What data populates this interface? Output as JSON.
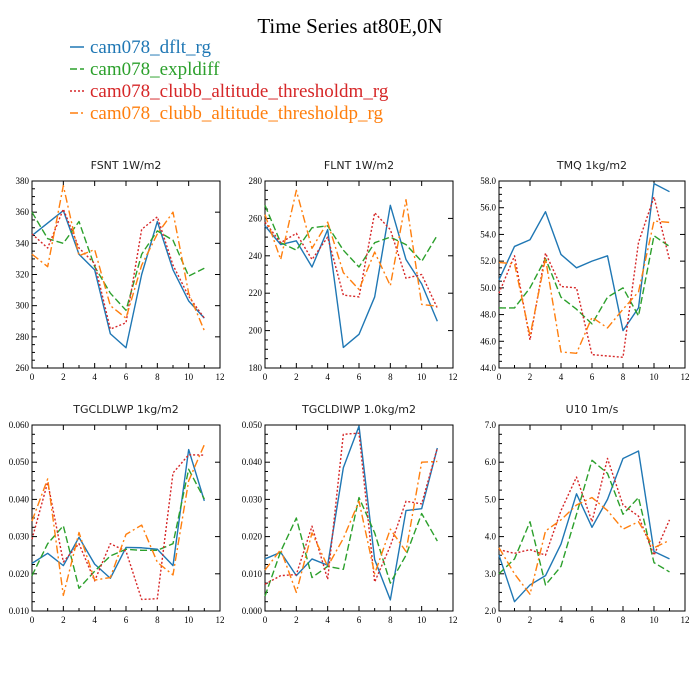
{
  "title": "Time Series at80E,0N",
  "legend": [
    {
      "label": "cam078_dflt_rg",
      "color": "#1f77b4"
    },
    {
      "label": "cam078_expldiff",
      "color": "#2ca02c"
    },
    {
      "label": "cam078_clubb_altitude_thresholdm_rg",
      "color": "#d62728"
    },
    {
      "label": "cam078_clubb_altitude_thresholdp_rg",
      "color": "#ff7f0e"
    }
  ],
  "chart_data": [
    {
      "type": "line",
      "title": "FSNT   1W/m2",
      "x": [
        0,
        1,
        2,
        3,
        4,
        5,
        6,
        7,
        8,
        9,
        10,
        11
      ],
      "xlim": [
        0,
        12
      ],
      "xticks": [
        0,
        2,
        4,
        6,
        8,
        10,
        12
      ],
      "xtick_labels": [
        "0",
        "2",
        "4",
        "6",
        "8",
        "10",
        "12"
      ],
      "ylim": [
        260,
        380
      ],
      "yticks": [
        260,
        280,
        300,
        320,
        340,
        360,
        380
      ],
      "ytick_labels": [
        "260",
        "280",
        "300",
        "320",
        "340",
        "360",
        "380"
      ],
      "series": [
        {
          "name": "cam078_dflt_rg",
          "values": [
            345,
            353,
            361,
            333,
            323,
            282,
            273,
            320,
            354,
            323,
            303,
            292
          ]
        },
        {
          "name": "cam078_expldiff",
          "values": [
            360,
            343,
            340,
            354,
            325,
            308,
            297,
            333,
            348,
            342,
            319,
            324
          ]
        },
        {
          "name": "cam078_clubb_altitude_thresholdm_rg",
          "values": [
            346,
            337,
            362,
            337,
            327,
            285,
            289,
            349,
            357,
            326,
            306,
            292
          ]
        },
        {
          "name": "cam078_clubb_altitude_thresholdp_rg",
          "values": [
            333,
            325,
            377,
            332,
            336,
            300,
            292,
            326,
            346,
            360,
            308,
            284
          ]
        }
      ]
    },
    {
      "type": "line",
      "title": "FLNT   1W/m2",
      "x": [
        0,
        1,
        2,
        3,
        4,
        5,
        6,
        7,
        8,
        9,
        10,
        11
      ],
      "xlim": [
        0,
        12
      ],
      "xticks": [
        0,
        2,
        4,
        6,
        8,
        10,
        12
      ],
      "xtick_labels": [
        "0",
        "2",
        "4",
        "6",
        "8",
        "10",
        "12"
      ],
      "ylim": [
        180,
        280
      ],
      "yticks": [
        180,
        200,
        220,
        240,
        260,
        280
      ],
      "ytick_labels": [
        "180",
        "200",
        "220",
        "240",
        "260",
        "280"
      ],
      "series": [
        {
          "name": "cam078_dflt_rg",
          "values": [
            256,
            246,
            248,
            234,
            254,
            191,
            198,
            218,
            267,
            238,
            225,
            205
          ]
        },
        {
          "name": "cam078_expldiff",
          "values": [
            267,
            247,
            243,
            255,
            256,
            243,
            234,
            247,
            250,
            246,
            237,
            251
          ]
        },
        {
          "name": "cam078_clubb_altitude_thresholdm_rg",
          "values": [
            258,
            247,
            252,
            238,
            250,
            219,
            218,
            263,
            254,
            228,
            230,
            212
          ]
        },
        {
          "name": "cam078_clubb_altitude_thresholdp_rg",
          "values": [
            262,
            238,
            275,
            244,
            258,
            231,
            222,
            242,
            224,
            270,
            214,
            213
          ]
        }
      ]
    },
    {
      "type": "line",
      "title": "TMQ   1kg/m2",
      "x": [
        0,
        1,
        2,
        3,
        4,
        5,
        6,
        7,
        8,
        9,
        10,
        11
      ],
      "xlim": [
        0,
        12
      ],
      "xticks": [
        0,
        2,
        4,
        6,
        8,
        10,
        12
      ],
      "xtick_labels": [
        "0",
        "2",
        "4",
        "6",
        "8",
        "10",
        "12"
      ],
      "ylim": [
        44,
        58
      ],
      "yticks": [
        44,
        46,
        48,
        50,
        52,
        54,
        56,
        58
      ],
      "ytick_labels": [
        "44.0",
        "46.0",
        "48.0",
        "50.0",
        "52.0",
        "54.0",
        "56.0",
        "58.0"
      ],
      "series": [
        {
          "name": "cam078_dflt_rg",
          "values": [
            50.6,
            53.1,
            53.6,
            55.7,
            52.5,
            51.5,
            52.0,
            52.4,
            46.8,
            48.5,
            57.8,
            57.2
          ]
        },
        {
          "name": "cam078_expldiff",
          "values": [
            48.5,
            48.5,
            50.0,
            52.2,
            49.3,
            48.4,
            47.3,
            49.3,
            50.0,
            47.9,
            53.9,
            53.1
          ]
        },
        {
          "name": "cam078_clubb_altitude_thresholdm_rg",
          "values": [
            49.6,
            52.4,
            46.1,
            52.6,
            50.1,
            50.0,
            45.0,
            44.9,
            44.8,
            53.4,
            56.8,
            52.1
          ]
        },
        {
          "name": "cam078_clubb_altitude_thresholdp_rg",
          "values": [
            51.9,
            51.8,
            46.4,
            52.2,
            45.2,
            45.1,
            47.8,
            47.0,
            48.4,
            49.7,
            55.0,
            54.9
          ]
        }
      ]
    },
    {
      "type": "line",
      "title": "TGCLDLWP   1kg/m2",
      "x": [
        0,
        1,
        2,
        3,
        4,
        5,
        6,
        7,
        8,
        9,
        10,
        11
      ],
      "xlim": [
        0,
        12
      ],
      "xticks": [
        0,
        2,
        4,
        6,
        8,
        10,
        12
      ],
      "xtick_labels": [
        "0",
        "2",
        "4",
        "6",
        "8",
        "10",
        "12"
      ],
      "ylim": [
        0.01,
        0.06
      ],
      "yticks": [
        0.01,
        0.02,
        0.03,
        0.04,
        0.05,
        0.06
      ],
      "ytick_labels": [
        "0.010",
        "0.020",
        "0.030",
        "0.040",
        "0.050",
        "0.060"
      ],
      "series": [
        {
          "name": "cam078_dflt_rg",
          "values": [
            0.0228,
            0.0255,
            0.0222,
            0.0298,
            0.0226,
            0.0188,
            0.0271,
            0.027,
            0.0266,
            0.0222,
            0.0534,
            0.0396
          ]
        },
        {
          "name": "cam078_expldiff",
          "values": [
            0.0195,
            0.0281,
            0.0329,
            0.0161,
            0.0207,
            0.0248,
            0.0266,
            0.0263,
            0.0263,
            0.0281,
            0.0481,
            0.0401
          ]
        },
        {
          "name": "cam078_clubb_altitude_thresholdm_rg",
          "values": [
            0.0293,
            0.0446,
            0.0232,
            0.0281,
            0.0181,
            0.0281,
            0.0261,
            0.0131,
            0.0133,
            0.0471,
            0.052,
            0.0519
          ]
        },
        {
          "name": "cam078_clubb_altitude_thresholdp_rg",
          "values": [
            0.0342,
            0.0455,
            0.0142,
            0.0311,
            0.0183,
            0.019,
            0.0306,
            0.0331,
            0.0231,
            0.0197,
            0.045,
            0.0547
          ]
        }
      ]
    },
    {
      "type": "line",
      "title": "TGCLDIWP   1.0kg/m2",
      "x": [
        0,
        1,
        2,
        3,
        4,
        5,
        6,
        7,
        8,
        9,
        10,
        11
      ],
      "xlim": [
        0,
        12
      ],
      "xticks": [
        0,
        2,
        4,
        6,
        8,
        10,
        12
      ],
      "xtick_labels": [
        "0",
        "2",
        "4",
        "6",
        "8",
        "10",
        "12"
      ],
      "ylim": [
        0.0,
        0.05
      ],
      "yticks": [
        0.0,
        0.01,
        0.02,
        0.03,
        0.04,
        0.05
      ],
      "ytick_labels": [
        "0.000",
        "0.010",
        "0.020",
        "0.030",
        "0.040",
        "0.050"
      ],
      "series": [
        {
          "name": "cam078_dflt_rg",
          "values": [
            0.014,
            0.0158,
            0.0095,
            0.014,
            0.0123,
            0.0385,
            0.0497,
            0.0138,
            0.003,
            0.027,
            0.0275,
            0.0438
          ]
        },
        {
          "name": "cam078_expldiff",
          "values": [
            0.004,
            0.016,
            0.025,
            0.009,
            0.012,
            0.0112,
            0.0305,
            0.021,
            0.0075,
            0.015,
            0.0262,
            0.0188
          ]
        },
        {
          "name": "cam078_clubb_altitude_thresholdm_rg",
          "values": [
            0.0072,
            0.0095,
            0.0098,
            0.0228,
            0.0085,
            0.0475,
            0.0478,
            0.0078,
            0.0175,
            0.0295,
            0.0288,
            0.0438
          ]
        },
        {
          "name": "cam078_clubb_altitude_thresholdp_rg",
          "values": [
            0.011,
            0.0165,
            0.005,
            0.021,
            0.012,
            0.0195,
            0.0295,
            0.01,
            0.022,
            0.016,
            0.04,
            0.0402
          ]
        }
      ]
    },
    {
      "type": "line",
      "title": "U10   1m/s",
      "x": [
        0,
        1,
        2,
        3,
        4,
        5,
        6,
        7,
        8,
        9,
        10,
        11
      ],
      "xlim": [
        0,
        12
      ],
      "xticks": [
        0,
        2,
        4,
        6,
        8,
        10,
        12
      ],
      "xtick_labels": [
        "0",
        "2",
        "4",
        "6",
        "8",
        "10",
        "12"
      ],
      "ylim": [
        2.0,
        7.0
      ],
      "yticks": [
        2,
        3,
        4,
        5,
        6,
        7
      ],
      "ytick_labels": [
        "2.0",
        "3.0",
        "4.0",
        "5.0",
        "6.0",
        "7.0"
      ],
      "series": [
        {
          "name": "cam078_dflt_rg",
          "values": [
            3.5,
            2.25,
            2.7,
            2.95,
            3.8,
            5.15,
            4.25,
            5.0,
            6.1,
            6.3,
            3.6,
            3.4
          ]
        },
        {
          "name": "cam078_expldiff",
          "values": [
            3.0,
            3.4,
            4.4,
            2.7,
            3.2,
            4.6,
            6.05,
            5.7,
            4.6,
            5.05,
            3.3,
            3.05
          ]
        },
        {
          "name": "cam078_clubb_altitude_thresholdm_rg",
          "values": [
            3.65,
            3.55,
            3.65,
            3.5,
            4.7,
            5.6,
            4.4,
            6.1,
            4.85,
            4.55,
            3.5,
            4.45
          ]
        },
        {
          "name": "cam078_clubb_altitude_thresholdp_rg",
          "values": [
            3.7,
            3.0,
            2.45,
            4.15,
            4.45,
            4.85,
            5.05,
            4.7,
            4.2,
            4.4,
            3.7,
            3.9
          ]
        }
      ]
    }
  ]
}
